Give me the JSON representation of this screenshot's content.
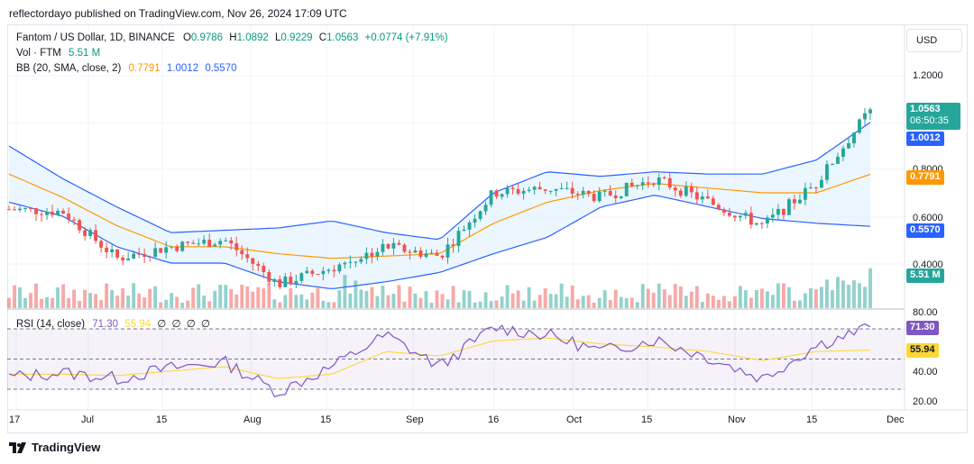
{
  "publisher": "reflectordayo published on TradingView.com, Nov 26, 2024 17:09 UTC",
  "legend": {
    "symbol": "Fantom / US Dollar, 1D, BINANCE",
    "o_label": "O",
    "o": "0.9786",
    "h_label": "H",
    "h": "1.0892",
    "l_label": "L",
    "l": "0.9229",
    "c_label": "C",
    "c": "1.0563",
    "change": "+0.0774 (+7.91%)",
    "vol_label": "Vol · FTM",
    "vol": "5.51 M",
    "bb_label": "BB (20, SMA, close, 2)",
    "bb_basis": "0.7791",
    "bb_upper": "1.0012",
    "bb_lower": "0.5570",
    "rsi_label": "RSI (14, close)",
    "rsi": "71.30",
    "rsi_ma": "55.94",
    "zeros": [
      "∅",
      "∅",
      "∅",
      "∅"
    ]
  },
  "axis": {
    "currency": "USD",
    "price_ticks": [
      "1.2000",
      "0.8000",
      "0.6000",
      "0.4000"
    ],
    "rsi_ticks": [
      "80.00",
      "40.00",
      "20.00"
    ],
    "x_ticks": [
      "17",
      "Jul",
      "15",
      "Aug",
      "15",
      "Sep",
      "16",
      "Oct",
      "15",
      "Nov",
      "15",
      "Dec"
    ],
    "price_tag": "1.0563",
    "countdown": "06:50:35",
    "upper_tag": "1.0012",
    "basis_tag": "0.7791",
    "lower_tag": "0.5570",
    "vol_tag": "5.51 M",
    "rsi_tag": "71.30",
    "rsi_ma_tag": "55.94"
  },
  "footer": {
    "brand": "TradingView"
  },
  "colors": {
    "up": "#26a69a",
    "down": "#ef5350",
    "upper_band": "#2962ff",
    "basis": "#ff9800",
    "rsi": "#7e57c2",
    "rsi_ma": "#fdd835",
    "band_fill": "#e3f2fd"
  },
  "chart_data": [
    {
      "type": "candlestick",
      "title": "Fantom / US Dollar, 1D, BINANCE",
      "ylim": [
        0.3,
        1.4
      ],
      "x": [
        "2024-06-17",
        "2024-06-26",
        "2024-07-05",
        "2024-07-15",
        "2024-07-25",
        "2024-08-05",
        "2024-08-15",
        "2024-08-25",
        "2024-09-05",
        "2024-09-16",
        "2024-09-25",
        "2024-10-05",
        "2024-10-15",
        "2024-10-25",
        "2024-11-05",
        "2024-11-15",
        "2024-11-26"
      ],
      "close": [
        0.63,
        0.62,
        0.42,
        0.47,
        0.5,
        0.31,
        0.38,
        0.47,
        0.43,
        0.7,
        0.72,
        0.68,
        0.76,
        0.66,
        0.56,
        0.74,
        1.0563
      ],
      "series": [
        {
          "name": "BB upper",
          "values": [
            0.9,
            0.76,
            0.64,
            0.53,
            0.54,
            0.55,
            0.58,
            0.53,
            0.5,
            0.7,
            0.79,
            0.77,
            0.79,
            0.78,
            0.78,
            0.84,
            1.0012
          ]
        },
        {
          "name": "BB basis",
          "values": [
            0.78,
            0.68,
            0.56,
            0.47,
            0.47,
            0.44,
            0.42,
            0.43,
            0.44,
            0.57,
            0.66,
            0.71,
            0.74,
            0.72,
            0.7,
            0.7,
            0.7791
          ]
        },
        {
          "name": "BB lower",
          "values": [
            0.66,
            0.6,
            0.47,
            0.4,
            0.4,
            0.32,
            0.29,
            0.32,
            0.36,
            0.44,
            0.51,
            0.64,
            0.69,
            0.64,
            0.59,
            0.57,
            0.557
          ]
        }
      ],
      "volume_last": "5.51 M"
    },
    {
      "type": "line",
      "title": "RSI (14, close)",
      "ylim": [
        20,
        90
      ],
      "bands": [
        70,
        50,
        30
      ],
      "series": [
        {
          "name": "RSI",
          "values": [
            38,
            41,
            37,
            44,
            48,
            28,
            45,
            66,
            45,
            71,
            66,
            55,
            63,
            51,
            37,
            59,
            71.3
          ]
        },
        {
          "name": "RSI MA",
          "values": [
            40,
            40,
            39,
            42,
            45,
            37,
            40,
            55,
            52,
            62,
            64,
            60,
            58,
            55,
            49,
            55,
            55.94
          ]
        }
      ]
    }
  ]
}
